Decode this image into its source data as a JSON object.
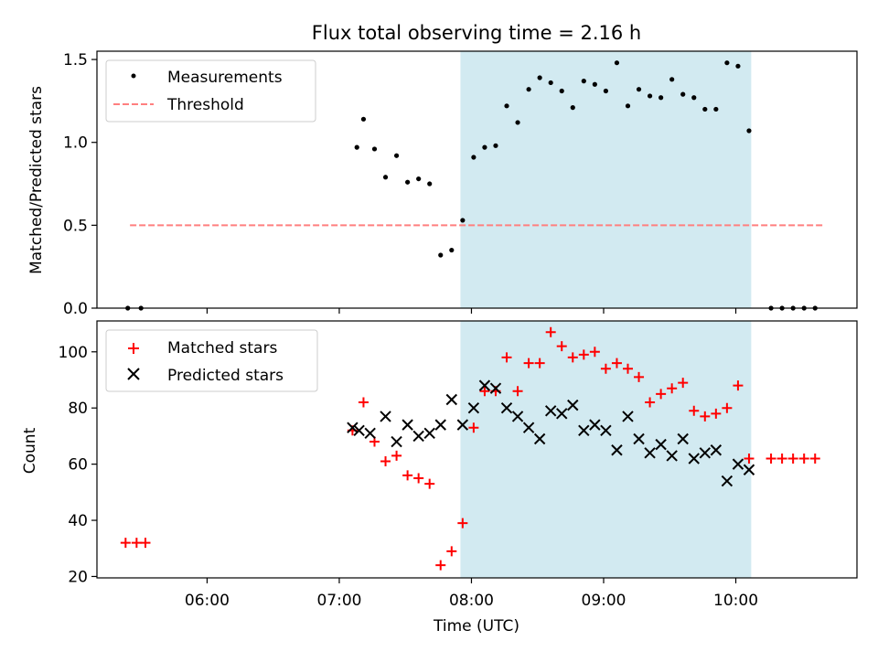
{
  "chart_data": [
    {
      "type": "scatter",
      "title": "Flux total observing time = 2.16 h",
      "xlabel": "",
      "ylabel": "Matched/Predicted stars",
      "xlim": [
        "05:10",
        "10:55"
      ],
      "ylim": [
        0,
        1.55
      ],
      "yticks": [
        0.0,
        0.5,
        1.0,
        1.5
      ],
      "ytick_labels": [
        "0.0",
        "0.5",
        "1.0",
        "1.5"
      ],
      "legend_position": "top-left",
      "grid": false,
      "shaded_region": {
        "x": [
          "07:55",
          "10:07"
        ],
        "color": "#add8e6"
      },
      "series": [
        {
          "name": "Measurements",
          "marker": "dot",
          "color": "#000000",
          "points": [
            [
              "05:24",
              0.0
            ],
            [
              "05:30",
              0.0
            ],
            [
              "07:08",
              0.97
            ],
            [
              "07:11",
              1.14
            ],
            [
              "07:16",
              0.96
            ],
            [
              "07:21",
              0.79
            ],
            [
              "07:26",
              0.92
            ],
            [
              "07:31",
              0.76
            ],
            [
              "07:36",
              0.78
            ],
            [
              "07:41",
              0.75
            ],
            [
              "07:46",
              0.32
            ],
            [
              "07:51",
              0.35
            ],
            [
              "07:56",
              0.53
            ],
            [
              "08:01",
              0.91
            ],
            [
              "08:06",
              0.97
            ],
            [
              "08:11",
              0.98
            ],
            [
              "08:16",
              1.22
            ],
            [
              "08:21",
              1.12
            ],
            [
              "08:26",
              1.32
            ],
            [
              "08:31",
              1.39
            ],
            [
              "08:36",
              1.36
            ],
            [
              "08:41",
              1.31
            ],
            [
              "08:46",
              1.21
            ],
            [
              "08:51",
              1.37
            ],
            [
              "08:56",
              1.35
            ],
            [
              "09:01",
              1.31
            ],
            [
              "09:06",
              1.48
            ],
            [
              "09:11",
              1.22
            ],
            [
              "09:16",
              1.32
            ],
            [
              "09:21",
              1.28
            ],
            [
              "09:26",
              1.27
            ],
            [
              "09:31",
              1.38
            ],
            [
              "09:36",
              1.29
            ],
            [
              "09:41",
              1.27
            ],
            [
              "09:46",
              1.2
            ],
            [
              "09:51",
              1.2
            ],
            [
              "09:56",
              1.48
            ],
            [
              "10:01",
              1.46
            ],
            [
              "10:06",
              1.07
            ],
            [
              "10:16",
              0.0
            ],
            [
              "10:21",
              0.0
            ],
            [
              "10:26",
              0.0
            ],
            [
              "10:31",
              0.0
            ],
            [
              "10:36",
              0.0
            ]
          ]
        },
        {
          "name": "Threshold",
          "style": "dashed",
          "color": "#ff7f7f",
          "points": [
            [
              "05:25",
              0.5
            ],
            [
              "10:40",
              0.5
            ]
          ]
        }
      ]
    },
    {
      "type": "scatter",
      "title": "",
      "xlabel": "Time (UTC)",
      "ylabel": "Count",
      "xlim": [
        "05:10",
        "10:55"
      ],
      "ylim": [
        19.5,
        111
      ],
      "xticks": [
        "06:00",
        "07:00",
        "08:00",
        "09:00",
        "10:00"
      ],
      "xtick_labels": [
        "06:00",
        "07:00",
        "08:00",
        "09:00",
        "10:00"
      ],
      "yticks": [
        20,
        40,
        60,
        80,
        100
      ],
      "ytick_labels": [
        "20",
        "40",
        "60",
        "80",
        "100"
      ],
      "legend_position": "top-left",
      "grid": false,
      "shaded_region": {
        "x": [
          "07:55",
          "10:07"
        ],
        "color": "#add8e6"
      },
      "series": [
        {
          "name": "Matched stars",
          "marker": "plus",
          "color": "#ff0000",
          "points": [
            [
              "05:23",
              32
            ],
            [
              "05:28",
              32
            ],
            [
              "05:32",
              32
            ],
            [
              "07:06",
              72
            ],
            [
              "07:11",
              82
            ],
            [
              "07:16",
              68
            ],
            [
              "07:21",
              61
            ],
            [
              "07:26",
              63
            ],
            [
              "07:31",
              56
            ],
            [
              "07:36",
              55
            ],
            [
              "07:41",
              53
            ],
            [
              "07:46",
              24
            ],
            [
              "07:51",
              29
            ],
            [
              "07:56",
              39
            ],
            [
              "08:01",
              73
            ],
            [
              "08:06",
              86
            ],
            [
              "08:11",
              86
            ],
            [
              "08:16",
              98
            ],
            [
              "08:21",
              86
            ],
            [
              "08:26",
              96
            ],
            [
              "08:31",
              96
            ],
            [
              "08:36",
              107
            ],
            [
              "08:41",
              102
            ],
            [
              "08:46",
              98
            ],
            [
              "08:51",
              99
            ],
            [
              "08:56",
              100
            ],
            [
              "09:01",
              94
            ],
            [
              "09:06",
              96
            ],
            [
              "09:11",
              94
            ],
            [
              "09:16",
              91
            ],
            [
              "09:21",
              82
            ],
            [
              "09:26",
              85
            ],
            [
              "09:31",
              87
            ],
            [
              "09:36",
              89
            ],
            [
              "09:41",
              79
            ],
            [
              "09:46",
              77
            ],
            [
              "09:51",
              78
            ],
            [
              "09:56",
              80
            ],
            [
              "10:01",
              88
            ],
            [
              "10:06",
              62
            ],
            [
              "10:16",
              62
            ],
            [
              "10:21",
              62
            ],
            [
              "10:26",
              62
            ],
            [
              "10:31",
              62
            ],
            [
              "10:36",
              62
            ]
          ]
        },
        {
          "name": "Predicted stars",
          "marker": "x",
          "color": "#000000",
          "points": [
            [
              "07:06",
              73
            ],
            [
              "07:09",
              72
            ],
            [
              "07:14",
              71
            ],
            [
              "07:21",
              77
            ],
            [
              "07:26",
              68
            ],
            [
              "07:31",
              74
            ],
            [
              "07:36",
              70
            ],
            [
              "07:41",
              71
            ],
            [
              "07:46",
              74
            ],
            [
              "07:51",
              83
            ],
            [
              "07:56",
              74
            ],
            [
              "08:01",
              80
            ],
            [
              "08:06",
              88
            ],
            [
              "08:11",
              87
            ],
            [
              "08:16",
              80
            ],
            [
              "08:21",
              77
            ],
            [
              "08:26",
              73
            ],
            [
              "08:31",
              69
            ],
            [
              "08:36",
              79
            ],
            [
              "08:41",
              78
            ],
            [
              "08:46",
              81
            ],
            [
              "08:51",
              72
            ],
            [
              "08:56",
              74
            ],
            [
              "09:01",
              72
            ],
            [
              "09:06",
              65
            ],
            [
              "09:11",
              77
            ],
            [
              "09:16",
              69
            ],
            [
              "09:21",
              64
            ],
            [
              "09:26",
              67
            ],
            [
              "09:31",
              63
            ],
            [
              "09:36",
              69
            ],
            [
              "09:41",
              62
            ],
            [
              "09:46",
              64
            ],
            [
              "09:51",
              65
            ],
            [
              "09:56",
              54
            ],
            [
              "10:01",
              60
            ],
            [
              "10:06",
              58
            ]
          ]
        }
      ]
    }
  ]
}
